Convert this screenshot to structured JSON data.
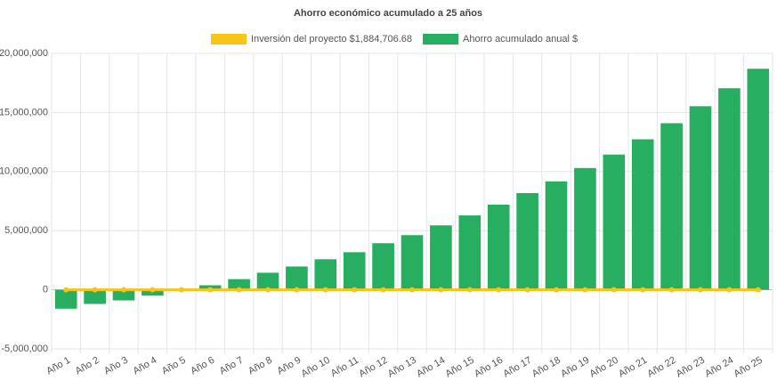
{
  "chart_data": {
    "type": "bar",
    "title": "Ahorro económico acumulado a 25 años",
    "categories": [
      "Año 1",
      "Año 2",
      "Año 3",
      "Año 4",
      "Año 5",
      "Año 6",
      "Año 7",
      "Año 8",
      "Año 9",
      "Año 10",
      "Año 11",
      "Año 12",
      "Año 13",
      "Año 14",
      "Año 15",
      "Año 16",
      "Año 17",
      "Año 18",
      "Año 19",
      "Año 20",
      "Año 21",
      "Año 22",
      "Año 23",
      "Año 24",
      "Año 25"
    ],
    "series": [
      {
        "name": "Inversión del proyecto $1,884,706.68",
        "color": "#f5c518",
        "type": "line",
        "values": [
          0,
          0,
          0,
          0,
          0,
          0,
          0,
          0,
          0,
          0,
          0,
          0,
          0,
          0,
          0,
          0,
          0,
          0,
          0,
          0,
          0,
          0,
          0,
          0,
          0
        ]
      },
      {
        "name": "Ahorro acumulado anual $",
        "color": "#28ae60",
        "type": "bar",
        "values": [
          -1600000,
          -1200000,
          -900000,
          -500000,
          0,
          380000,
          900000,
          1440000,
          1970000,
          2580000,
          3180000,
          3940000,
          4620000,
          5450000,
          6290000,
          7200000,
          8180000,
          9170000,
          10300000,
          11440000,
          12730000,
          14090000,
          15530000,
          17050000,
          18700000
        ]
      }
    ],
    "ylim": [
      -5000000,
      20000000
    ],
    "yticks": [
      {
        "value": -5000000,
        "label": "-5,000,000"
      },
      0,
      {
        "value": 5000000,
        "label": "5,000,000"
      },
      {
        "value": 10000000,
        "label": "10,000,000"
      },
      {
        "value": 15000000,
        "label": "15,000,000"
      },
      {
        "value": 20000000,
        "label": "20,000,000"
      }
    ],
    "grid": true,
    "legend": "top"
  }
}
